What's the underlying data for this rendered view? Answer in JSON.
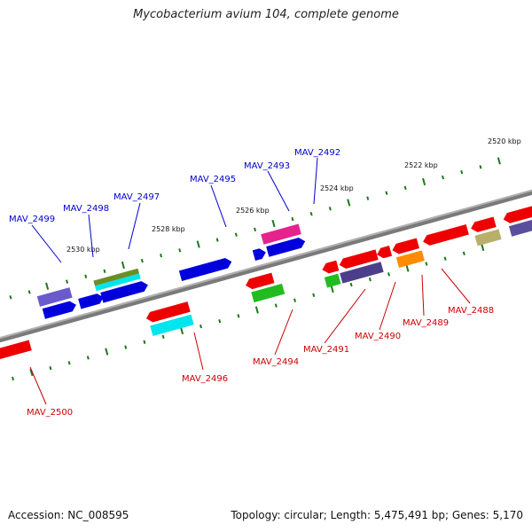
{
  "title": "Mycobacterium avium 104, complete genome",
  "footer": {
    "accession": "Accession: NC_008595",
    "summary": "Topology: circular; Length: 5,475,491 bp; Genes: 5,170"
  },
  "colors": {
    "forward_label": "#0000cc",
    "reverse_label": "#cc0000",
    "tick": "#1a7a1a",
    "backbone": "#808080"
  },
  "scale_labels": [
    "2530 kbp",
    "2528 kbp",
    "2526 kbp",
    "2524 kbp",
    "2522 kbp",
    "2520 kbp"
  ],
  "forward_genes": [
    "MAV_2499",
    "MAV_2498",
    "MAV_2497",
    "MAV_2495",
    "MAV_2493",
    "MAV_2492"
  ],
  "reverse_genes": [
    "MAV_2500",
    "MAV_2496",
    "MAV_2494",
    "MAV_2491",
    "MAV_2490",
    "MAV_2489",
    "MAV_2488"
  ]
}
